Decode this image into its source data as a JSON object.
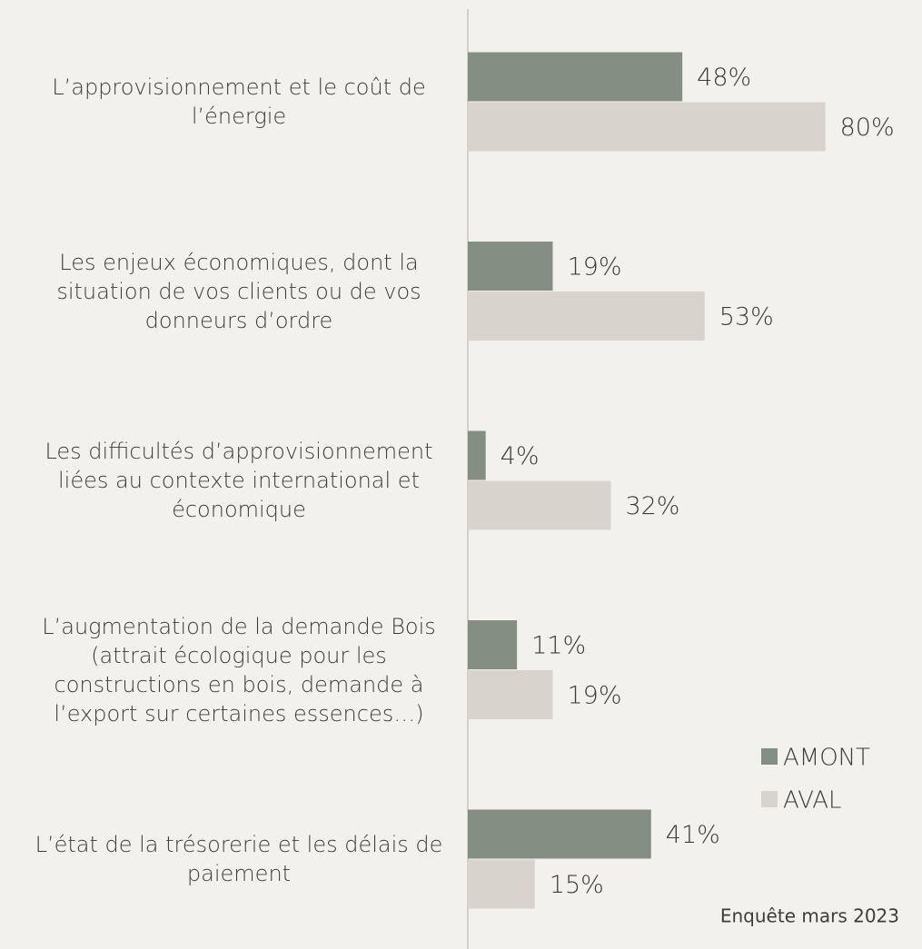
{
  "chart_data": {
    "type": "bar",
    "orientation": "horizontal",
    "categories": [
      "L’approvisionnement et le coût de l’énergie",
      "Les enjeux économiques, dont la situation de vos clients ou de vos donneurs d’ordre",
      "Les difficultés d’approvisionnement liées au contexte international et économique",
      "L’augmentation de la demande Bois (attrait écologique pour les constructions en bois, demande à l’export sur certaines essences…)",
      "L’état de la trésorerie et les délais de paiement"
    ],
    "series": [
      {
        "name": "AMONT",
        "color": "#848e83",
        "values": [
          48,
          19,
          4,
          11,
          41
        ],
        "value_labels": [
          "48%",
          "19%",
          "4%",
          "11%",
          "41%"
        ]
      },
      {
        "name": "AVAL",
        "color": "#d8d3cd",
        "values": [
          80,
          53,
          32,
          19,
          15
        ],
        "value_labels": [
          "80%",
          "53%",
          "32%",
          "19%",
          "15%"
        ]
      }
    ],
    "xlim": [
      0,
      100
    ],
    "annotation": "Enquête mars 2023"
  }
}
